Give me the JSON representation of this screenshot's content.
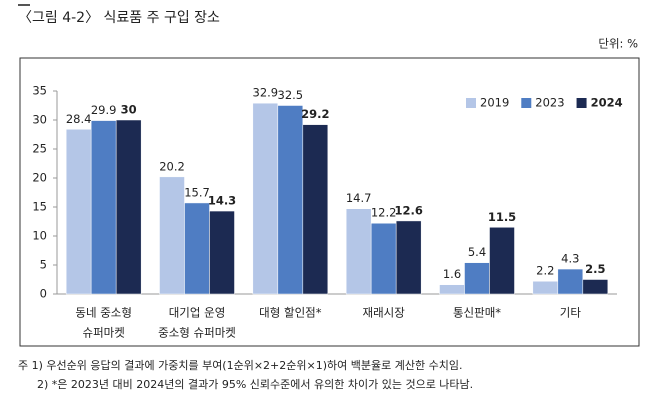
{
  "chart_data": {
    "type": "bar",
    "title": "〈그림 4-2〉 식료품 주 구입 장소",
    "unit": "단위: %",
    "categories": [
      [
        "동네 중소형",
        "슈퍼마켓"
      ],
      [
        "대기업 운영",
        "중소형 슈퍼마켓"
      ],
      [
        "대형 할인점*"
      ],
      [
        "재래시장"
      ],
      [
        "통신판매*"
      ],
      [
        "기타"
      ]
    ],
    "series": [
      {
        "name": "2019",
        "color": "#b4c6e7",
        "bold": false,
        "values": [
          28.4,
          20.2,
          32.9,
          14.7,
          1.6,
          2.2
        ]
      },
      {
        "name": "2023",
        "color": "#4f7dc3",
        "bold": false,
        "values": [
          29.9,
          15.7,
          32.5,
          12.2,
          5.4,
          4.3
        ]
      },
      {
        "name": "2024",
        "color": "#1c2a52",
        "bold": true,
        "values": [
          30.0,
          14.3,
          29.2,
          12.6,
          11.5,
          2.5
        ]
      }
    ],
    "ylim": [
      0,
      35
    ],
    "yticks": [
      0,
      5,
      10,
      15,
      20,
      25,
      30,
      35
    ],
    "grid": false,
    "legend": "top-right",
    "notes": [
      "주 1) 우선순위 응답의 결과에 가중치를 부여(1순위×2+2순위×1)하여 백분율로 계산한 수치임.",
      "2) *은 2023년 대비 2024년의 결과가 95% 신뢰수준에서 유의한 차이가 있는 것으로 나타남."
    ]
  }
}
